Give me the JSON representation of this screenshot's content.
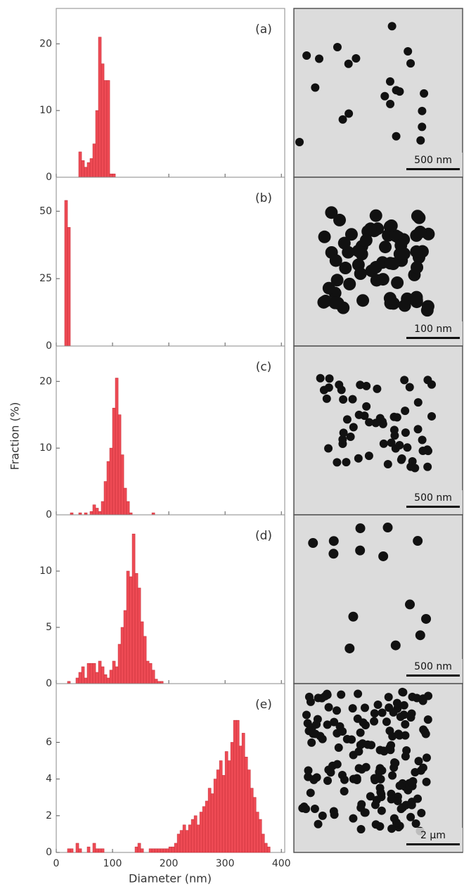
{
  "figure": {
    "ylabel": "Fraction (%)",
    "xlabel": "Diameter (nm)"
  },
  "images": [
    {
      "scale_bar": "500 nm"
    },
    {
      "scale_bar": "100 nm"
    },
    {
      "scale_bar": "500 nm"
    },
    {
      "scale_bar": "500 nm"
    },
    {
      "scale_bar": "2 μm"
    }
  ],
  "chart_data": [
    {
      "type": "histogram",
      "label": "(a)",
      "color": "#ef4b55",
      "bins": [
        40,
        45,
        50,
        55,
        60,
        65,
        70,
        75,
        80,
        85,
        90,
        95,
        100,
        105
      ],
      "values": [
        3.8,
        2.5,
        1.5,
        2.2,
        2.8,
        5,
        10,
        21,
        17,
        14.5,
        14.5,
        0.5,
        0.5
      ],
      "ylim": [
        0,
        25.3
      ],
      "yticks": [
        0,
        10,
        20
      ],
      "xlim": [
        0,
        406
      ]
    },
    {
      "type": "histogram",
      "label": "(b)",
      "color": "#ef4b55",
      "bins": [
        15,
        20,
        25
      ],
      "values": [
        54,
        44
      ],
      "ylim": [
        0,
        62.6
      ],
      "yticks": [
        0,
        25,
        50
      ],
      "xlim": [
        0,
        406
      ]
    },
    {
      "type": "histogram",
      "label": "(c)",
      "color": "#ef4b55",
      "bins": [
        25,
        30,
        35,
        40,
        45,
        50,
        55,
        60,
        65,
        70,
        75,
        80,
        85,
        90,
        95,
        100,
        105,
        110,
        115,
        120,
        125,
        130,
        135,
        140,
        145,
        150,
        155,
        160,
        165,
        170,
        175
      ],
      "values": [
        0.3,
        0,
        0,
        0.3,
        0,
        0.3,
        0,
        0.5,
        1.5,
        1,
        0.5,
        2,
        5,
        8,
        10,
        16,
        20.5,
        15,
        9,
        4,
        2,
        0.3,
        0,
        0,
        0,
        0,
        0,
        0,
        0,
        0.3
      ],
      "ylim": [
        0,
        25.3
      ],
      "yticks": [
        0,
        10,
        20
      ],
      "xlim": [
        0,
        406
      ]
    },
    {
      "type": "histogram",
      "label": "(d)",
      "color": "#ef4b55",
      "bins": [
        20,
        25,
        30,
        35,
        40,
        45,
        50,
        55,
        60,
        65,
        70,
        75,
        80,
        85,
        90,
        95,
        100,
        105,
        110,
        115,
        120,
        125,
        130,
        135,
        140,
        145,
        150,
        155,
        160,
        165,
        170,
        175,
        180,
        185,
        190
      ],
      "values": [
        0.2,
        0,
        0,
        0.5,
        1,
        1.5,
        0.5,
        1.8,
        1.8,
        1.8,
        1,
        2,
        1.5,
        0.8,
        0.5,
        1.2,
        2,
        1.5,
        3.5,
        5,
        6.5,
        10,
        9.5,
        13.3,
        9.8,
        8.5,
        5.5,
        4.2,
        2,
        1.8,
        1.2,
        0.4,
        0.2,
        0.2
      ],
      "ylim": [
        0,
        15
      ],
      "yticks": [
        0,
        5,
        10
      ],
      "xlim": [
        0,
        406
      ]
    },
    {
      "type": "histogram",
      "label": "(e)",
      "color": "#ef4b55",
      "bins": [
        20,
        25,
        30,
        35,
        40,
        45,
        50,
        55,
        60,
        65,
        70,
        75,
        80,
        85,
        90,
        95,
        100,
        105,
        110,
        115,
        120,
        125,
        130,
        135,
        140,
        145,
        150,
        155,
        160,
        165,
        170,
        175,
        180,
        185,
        190,
        195,
        200,
        205,
        210,
        215,
        220,
        225,
        230,
        235,
        240,
        245,
        250,
        255,
        260,
        265,
        270,
        275,
        280,
        285,
        290,
        295,
        300,
        305,
        310,
        315,
        320,
        325,
        330,
        335,
        340,
        345,
        350,
        355,
        360,
        365,
        370,
        375,
        380
      ],
      "values": [
        0.2,
        0.2,
        0,
        0.5,
        0.2,
        0,
        0,
        0.3,
        0,
        0.5,
        0.2,
        0.2,
        0.2,
        0,
        0,
        0,
        0,
        0,
        0,
        0,
        0,
        0,
        0,
        0,
        0.3,
        0.5,
        0.2,
        0,
        0,
        0.2,
        0.2,
        0.2,
        0.2,
        0.2,
        0.2,
        0.2,
        0.3,
        0.3,
        0.5,
        1,
        1.2,
        1.5,
        1.2,
        1.5,
        1.8,
        2,
        1.5,
        2.2,
        2.5,
        2.8,
        3.5,
        3.2,
        4,
        4.5,
        5,
        4.2,
        5.5,
        5,
        6,
        7.2,
        7.2,
        5.8,
        6.5,
        5.2,
        4.5,
        3.5,
        3,
        2.2,
        1.8,
        1,
        0.5,
        0.3
      ],
      "ylim": [
        0,
        9.2
      ],
      "yticks": [
        0,
        2,
        4,
        6
      ],
      "xlim": [
        0,
        406
      ],
      "xticks": [
        0,
        100,
        200,
        300,
        400
      ]
    }
  ]
}
